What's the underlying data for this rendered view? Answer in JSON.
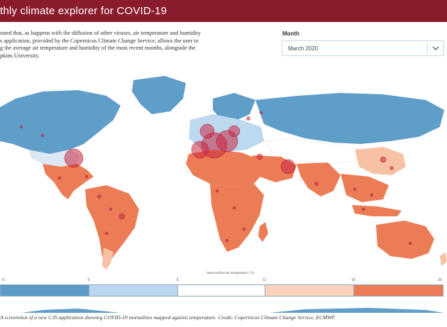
{
  "app": {
    "title": "thly climate explorer for COVID-19"
  },
  "intro": {
    "lines": [
      "rated that, as happens with the diffusion of other viruses, air temperature and humidity",
      "s application, provided by the Copernicus Climate Change Service, allows the user to",
      "g the average air temperature and humidity of the most recent months, alongside the",
      "pkins University."
    ]
  },
  "month_selector": {
    "label": "Month",
    "value": "March 2020"
  },
  "legend": {
    "title": "Near-surface air temperature (°C)",
    "ticks": [
      "-0",
      "0",
      "5",
      "11",
      "16",
      "30"
    ],
    "colors": [
      "#5b9bc6",
      "#bad8f0",
      "#ffffff",
      "#fbd3bc",
      "#ec7c55"
    ]
  },
  "map": {
    "colors": {
      "ocean": "#ffffff",
      "cold": "#5f9ec9",
      "cool": "#bcd9ef",
      "mild": "#ffffff",
      "warm": "#f7c2a4",
      "hot": "#ec7c55",
      "marker": "#c9243f"
    }
  },
  "caption": {
    "text": "A screenshot of a new C3S application showing COVID-19 mortalities mapped against temperature. Credit: Copernicus Climate Change Service, ECMWF"
  }
}
